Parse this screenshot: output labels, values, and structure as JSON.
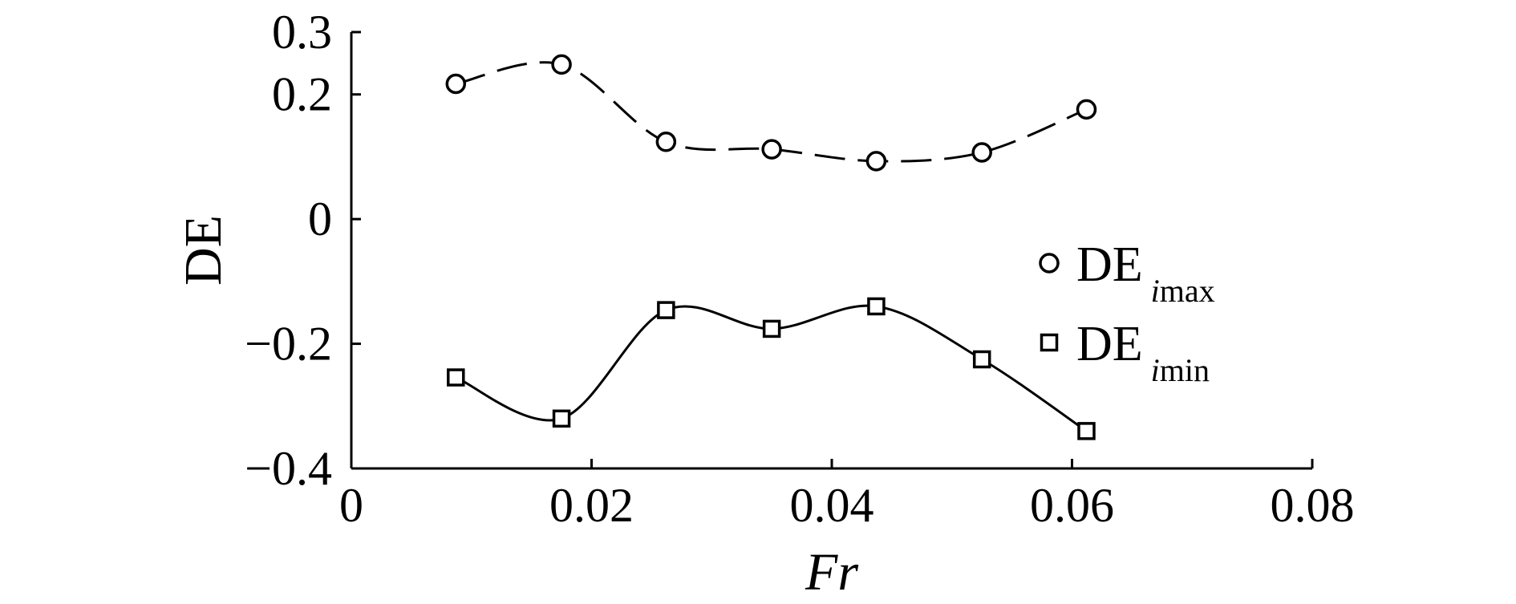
{
  "chart_data": {
    "type": "line",
    "xlabel": "Fr",
    "ylabel": "DE",
    "xlim": [
      0,
      0.08
    ],
    "ylim": [
      -0.4,
      0.3
    ],
    "x_ticks": [
      {
        "value": 0,
        "label": "0"
      },
      {
        "value": 0.02,
        "label": "0.02"
      },
      {
        "value": 0.04,
        "label": "0.04"
      },
      {
        "value": 0.06,
        "label": "0.06"
      },
      {
        "value": 0.08,
        "label": "0.08"
      }
    ],
    "y_ticks": [
      {
        "value": 0.3,
        "label": "0.3"
      },
      {
        "value": 0.2,
        "label": "0.2"
      },
      {
        "value": 0,
        "label": "0"
      },
      {
        "value": -0.2,
        "label": "−0.2"
      },
      {
        "value": -0.4,
        "label": "−0.4"
      }
    ],
    "grid": false,
    "legend_position": "right",
    "series": [
      {
        "name_main": "DE",
        "name_sub": "imax",
        "marker": "circle",
        "line_style": "dashed",
        "x": [
          0.0087,
          0.0175,
          0.0262,
          0.035,
          0.0437,
          0.0525,
          0.0612
        ],
        "values": [
          0.217,
          0.248,
          0.124,
          0.112,
          0.093,
          0.107,
          0.176
        ]
      },
      {
        "name_main": "DE",
        "name_sub": "imin",
        "marker": "square",
        "line_style": "solid",
        "x": [
          0.0087,
          0.0175,
          0.0262,
          0.035,
          0.0437,
          0.0525,
          0.0612
        ],
        "values": [
          -0.254,
          -0.32,
          -0.146,
          -0.176,
          -0.14,
          -0.225,
          -0.34
        ]
      }
    ]
  }
}
